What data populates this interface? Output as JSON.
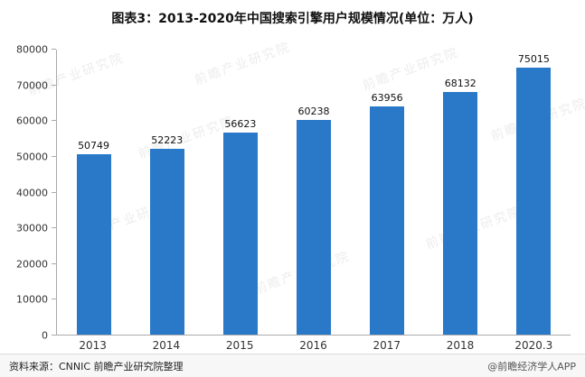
{
  "title": "图表3：2013-2020年中国搜索引擎用户规模情况(单位：万人)",
  "watermark": {
    "text": "前瞻产业研究院"
  },
  "footer": {
    "source": "资料来源：CNNIC 前瞻产业研究院整理",
    "credit": "@前瞻经济学人APP"
  },
  "colors": {
    "bar": "#2979C8",
    "axis": "#AAAAAA"
  },
  "chart_data": {
    "type": "bar",
    "title": "图表3：2013-2020年中国搜索引擎用户规模情况(单位：万人)",
    "categories": [
      "2013",
      "2014",
      "2015",
      "2016",
      "2017",
      "2018",
      "2020.3"
    ],
    "values": [
      50749,
      52223,
      56623,
      60238,
      63956,
      68132,
      75015
    ],
    "xlabel": "",
    "ylabel": "",
    "ylim": [
      0,
      80000
    ],
    "ytick_step": 10000,
    "grid": false,
    "legend": "none",
    "bar_color": "#2979C8",
    "value_labels": true
  }
}
